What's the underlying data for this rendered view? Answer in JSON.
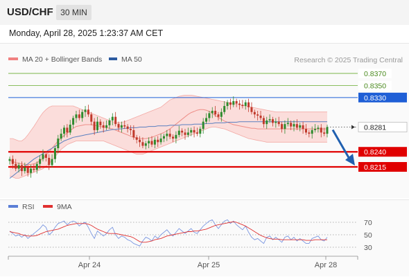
{
  "header": {
    "symbol": "USD/CHF",
    "timeframe": "30 MIN"
  },
  "datetime": "Monday, April 28, 2025 1:23:37 AM CET",
  "credit": "Research © 2025 Trading Central",
  "legend_main": [
    {
      "label": "MA 20 + Bollinger Bands",
      "color": "#f08080"
    },
    {
      "label": "MA 50",
      "color": "#2c5aa0"
    }
  ],
  "legend_rsi": [
    {
      "label": "RSI",
      "color": "#5b7fd6"
    },
    {
      "label": "9MA",
      "color": "#e03030"
    }
  ],
  "colors": {
    "up": "#2e8b2e",
    "down": "#c0392b",
    "resistance": "#7ab648",
    "pivot": "#1f5fd6",
    "support": "#e00000",
    "arrow": "#2060b0"
  },
  "chart_data": [
    {
      "type": "candlestick",
      "x_ticks": [
        "Apr 24",
        "Apr 25",
        "Apr 28"
      ],
      "ylim": [
        0.8158,
        0.8398
      ],
      "levels": [
        {
          "label": "0.8370",
          "value": 0.837,
          "kind": "resistance"
        },
        {
          "label": "0.8350",
          "value": 0.835,
          "kind": "resistance"
        },
        {
          "label": "0.8330",
          "value": 0.833,
          "kind": "pivot"
        },
        {
          "label": "0.8281",
          "value": 0.8281,
          "kind": "last"
        },
        {
          "label": "0.8240",
          "value": 0.824,
          "kind": "support"
        },
        {
          "label": "0.8215",
          "value": 0.8215,
          "kind": "support"
        }
      ],
      "closes": [
        0.8228,
        0.822,
        0.8212,
        0.8218,
        0.8208,
        0.8214,
        0.8205,
        0.8212,
        0.821,
        0.822,
        0.8228,
        0.8236,
        0.823,
        0.8218,
        0.8228,
        0.8246,
        0.8262,
        0.827,
        0.828,
        0.8272,
        0.8285,
        0.8296,
        0.8302,
        0.8296,
        0.8306,
        0.831,
        0.8302,
        0.829,
        0.8276,
        0.829,
        0.8284,
        0.828,
        0.8284,
        0.8292,
        0.8298,
        0.8286,
        0.828,
        0.8284,
        0.8282,
        0.8278,
        0.8276,
        0.8264,
        0.826,
        0.8256,
        0.825,
        0.8254,
        0.8258,
        0.8252,
        0.826,
        0.8256,
        0.8262,
        0.8266,
        0.827,
        0.8265,
        0.8262,
        0.8268,
        0.8275,
        0.8272,
        0.8268,
        0.8272,
        0.8276,
        0.8272,
        0.827,
        0.8278,
        0.829,
        0.8296,
        0.8304,
        0.8308,
        0.8302,
        0.8298,
        0.8306,
        0.8316,
        0.8322,
        0.8318,
        0.8324,
        0.832,
        0.8318,
        0.8316,
        0.8322,
        0.8314,
        0.8306,
        0.8302,
        0.83,
        0.8296,
        0.8286,
        0.8292,
        0.8294,
        0.8288,
        0.829,
        0.8286,
        0.8278,
        0.8286,
        0.8288,
        0.8282,
        0.8286,
        0.828,
        0.8284,
        0.8278,
        0.8272,
        0.827,
        0.8276,
        0.8278,
        0.828,
        0.8272,
        0.827,
        0.8281
      ],
      "ma20": [
        0.8226,
        0.8224,
        0.8222,
        0.8221,
        0.822,
        0.8219,
        0.8219,
        0.8219,
        0.822,
        0.8222,
        0.8225,
        0.8229,
        0.8234,
        0.824,
        0.8246,
        0.8252,
        0.8258,
        0.8263,
        0.8267,
        0.8271,
        0.8275,
        0.8279,
        0.8282,
        0.8283,
        0.8284,
        0.8285,
        0.8285,
        0.8285,
        0.8284,
        0.8283,
        0.8282,
        0.8281,
        0.828,
        0.8279,
        0.8278,
        0.8276,
        0.8274,
        0.8272,
        0.827,
        0.8268,
        0.8266,
        0.8264,
        0.8263,
        0.8262,
        0.8262,
        0.8262,
        0.8263,
        0.8264,
        0.8266,
        0.8268,
        0.827,
        0.8272,
        0.8275,
        0.8278,
        0.8282,
        0.8286,
        0.829,
        0.8294,
        0.8298,
        0.8302,
        0.8305,
        0.8307,
        0.8309,
        0.831,
        0.831,
        0.8309,
        0.8307,
        0.8304,
        0.83,
        0.8297,
        0.8294,
        0.8291,
        0.8289,
        0.8287,
        0.8285,
        0.8284,
        0.8283,
        0.8282,
        0.8281,
        0.828,
        0.8279,
        0.8279,
        0.8278,
        0.8278,
        0.8278,
        0.8278,
        0.8278,
        0.8278,
        0.8278,
        0.8278,
        0.8278,
        0.8278,
        0.8278,
        0.8278,
        0.8278,
        0.8278,
        0.8278,
        0.8278,
        0.8278,
        0.8278,
        0.8278,
        0.8278,
        0.8278,
        0.8278,
        0.8278,
        0.8278
      ],
      "ma50": [
        0.8196,
        0.82,
        0.8204,
        0.8208,
        0.8212,
        0.8216,
        0.822,
        0.8224,
        0.8228,
        0.8231,
        0.8234,
        0.8237,
        0.824,
        0.8243,
        0.8246,
        0.8249,
        0.8252,
        0.8255,
        0.8258,
        0.826,
        0.8262,
        0.8264,
        0.8265,
        0.8266,
        0.8267,
        0.8268,
        0.8269,
        0.827,
        0.8271,
        0.8272,
        0.8273,
        0.8274,
        0.8275,
        0.8276,
        0.8277,
        0.8277,
        0.8278,
        0.8278,
        0.8279,
        0.8279,
        0.828,
        0.828,
        0.828,
        0.8281,
        0.8281,
        0.8281,
        0.8282,
        0.8282,
        0.8282,
        0.8283,
        0.8283,
        0.8283,
        0.8283,
        0.8284,
        0.8284,
        0.8284,
        0.8284,
        0.8285,
        0.8285,
        0.8285,
        0.8285,
        0.8286,
        0.8286,
        0.8286,
        0.8286,
        0.8287,
        0.8287,
        0.8287,
        0.8288,
        0.8288,
        0.8288,
        0.8288,
        0.8289,
        0.8289,
        0.8289,
        0.8289,
        0.829,
        0.829,
        0.829,
        0.829,
        0.829,
        0.829,
        0.829,
        0.829,
        0.829,
        0.829,
        0.829,
        0.829,
        0.829,
        0.829,
        0.829,
        0.829,
        0.829,
        0.829,
        0.829,
        0.829,
        0.829,
        0.829,
        0.829,
        0.829,
        0.829,
        0.829,
        0.829,
        0.829,
        0.829,
        0.829
      ],
      "bb_upper": [
        0.8262,
        0.8262,
        0.826,
        0.8258,
        0.8258,
        0.8262,
        0.8268,
        0.8275,
        0.8282,
        0.829,
        0.8298,
        0.8305,
        0.831,
        0.8314,
        0.8316,
        0.8316,
        0.8316,
        0.8316,
        0.8316,
        0.8316,
        0.8316,
        0.8316,
        0.8314,
        0.8312,
        0.831,
        0.8308,
        0.8306,
        0.8304,
        0.8302,
        0.83,
        0.8298,
        0.8296,
        0.8294,
        0.8292,
        0.829,
        0.8289,
        0.8288,
        0.8289,
        0.829,
        0.8292,
        0.8294,
        0.8296,
        0.8298,
        0.83,
        0.8302,
        0.8304,
        0.8306,
        0.8308,
        0.831,
        0.8312,
        0.8314,
        0.8318,
        0.8322,
        0.8326,
        0.8328,
        0.833,
        0.8332,
        0.8333,
        0.8334,
        0.8334,
        0.8334,
        0.8333,
        0.8332,
        0.8331,
        0.833,
        0.8329,
        0.8328,
        0.8327,
        0.8326,
        0.8325,
        0.8324,
        0.8323,
        0.8322,
        0.8321,
        0.832,
        0.8319,
        0.8318,
        0.8317,
        0.8316,
        0.8315,
        0.8314,
        0.8313,
        0.8312,
        0.8311,
        0.831,
        0.8309,
        0.8308,
        0.8307,
        0.8306,
        0.8306,
        0.8306,
        0.8306,
        0.8306,
        0.8306,
        0.8306,
        0.8306,
        0.8306,
        0.8306,
        0.8306,
        0.8306,
        0.8306,
        0.8306,
        0.8306,
        0.8306,
        0.8306,
        0.8306
      ],
      "bb_lower": [
        0.82,
        0.8198,
        0.8196,
        0.8196,
        0.8198,
        0.82,
        0.8202,
        0.8204,
        0.8206,
        0.8208,
        0.821,
        0.8212,
        0.8216,
        0.822,
        0.8226,
        0.8232,
        0.8238,
        0.8244,
        0.8248,
        0.8252,
        0.8254,
        0.8256,
        0.8258,
        0.8258,
        0.8258,
        0.8258,
        0.8258,
        0.8258,
        0.8258,
        0.8258,
        0.8258,
        0.8258,
        0.8256,
        0.8254,
        0.8252,
        0.825,
        0.8248,
        0.8246,
        0.8244,
        0.8242,
        0.824,
        0.8238,
        0.8236,
        0.8236,
        0.8236,
        0.8238,
        0.824,
        0.8242,
        0.8244,
        0.8246,
        0.8248,
        0.825,
        0.8252,
        0.8254,
        0.8256,
        0.8258,
        0.826,
        0.8262,
        0.8264,
        0.8266,
        0.8268,
        0.827,
        0.8272,
        0.8274,
        0.8276,
        0.8278,
        0.828,
        0.8281,
        0.8281,
        0.828,
        0.8279,
        0.8278,
        0.8276,
        0.8274,
        0.8272,
        0.827,
        0.8268,
        0.8266,
        0.8264,
        0.8262,
        0.8261,
        0.826,
        0.8259,
        0.8258,
        0.8257,
        0.8256,
        0.8256,
        0.8256,
        0.8256,
        0.8256,
        0.8256,
        0.8256,
        0.8256,
        0.8256,
        0.8256,
        0.8256,
        0.8256,
        0.8256,
        0.8256,
        0.8256,
        0.8256,
        0.8256,
        0.8256,
        0.8256,
        0.8256,
        0.8256
      ]
    },
    {
      "type": "line",
      "name": "RSI",
      "yticks": [
        "70",
        "50",
        "30"
      ],
      "ylim": [
        20,
        80
      ],
      "levels": [
        70,
        50,
        30
      ],
      "rsi": [
        56,
        52,
        48,
        50,
        46,
        50,
        44,
        48,
        52,
        56,
        60,
        66,
        62,
        50,
        54,
        62,
        68,
        70,
        72,
        66,
        70,
        72,
        70,
        64,
        68,
        70,
        62,
        52,
        44,
        56,
        52,
        48,
        52,
        58,
        62,
        50,
        44,
        48,
        46,
        42,
        40,
        36,
        34,
        32,
        40,
        46,
        44,
        40,
        48,
        44,
        50,
        54,
        58,
        52,
        48,
        54,
        60,
        56,
        52,
        56,
        60,
        54,
        52,
        58,
        64,
        68,
        72,
        74,
        66,
        60,
        66,
        72,
        74,
        68,
        72,
        66,
        62,
        58,
        64,
        54,
        46,
        42,
        44,
        40,
        36,
        46,
        48,
        42,
        46,
        42,
        38,
        46,
        48,
        42,
        46,
        40,
        44,
        40,
        36,
        36,
        44,
        46,
        48,
        42,
        40,
        46
      ],
      "ma9": [
        55,
        54,
        53,
        52,
        50,
        49,
        48,
        48,
        48,
        49,
        51,
        53,
        55,
        56,
        57,
        58,
        59,
        61,
        63,
        65,
        66,
        67,
        68,
        68,
        68,
        68,
        67,
        65,
        62,
        59,
        57,
        55,
        53,
        52,
        52,
        52,
        51,
        50,
        49,
        48,
        47,
        45,
        42,
        39,
        38,
        38,
        39,
        40,
        42,
        43,
        44,
        46,
        48,
        49,
        50,
        51,
        52,
        53,
        54,
        55,
        55,
        56,
        56,
        57,
        58,
        59,
        61,
        63,
        65,
        66,
        67,
        68,
        69,
        70,
        71,
        70,
        68,
        66,
        64,
        61,
        58,
        55,
        52,
        49,
        47,
        45,
        44,
        43,
        43,
        43,
        42,
        42,
        42,
        42,
        42,
        42,
        42,
        42,
        41,
        41,
        41,
        42,
        42,
        42,
        42,
        42
      ]
    }
  ]
}
